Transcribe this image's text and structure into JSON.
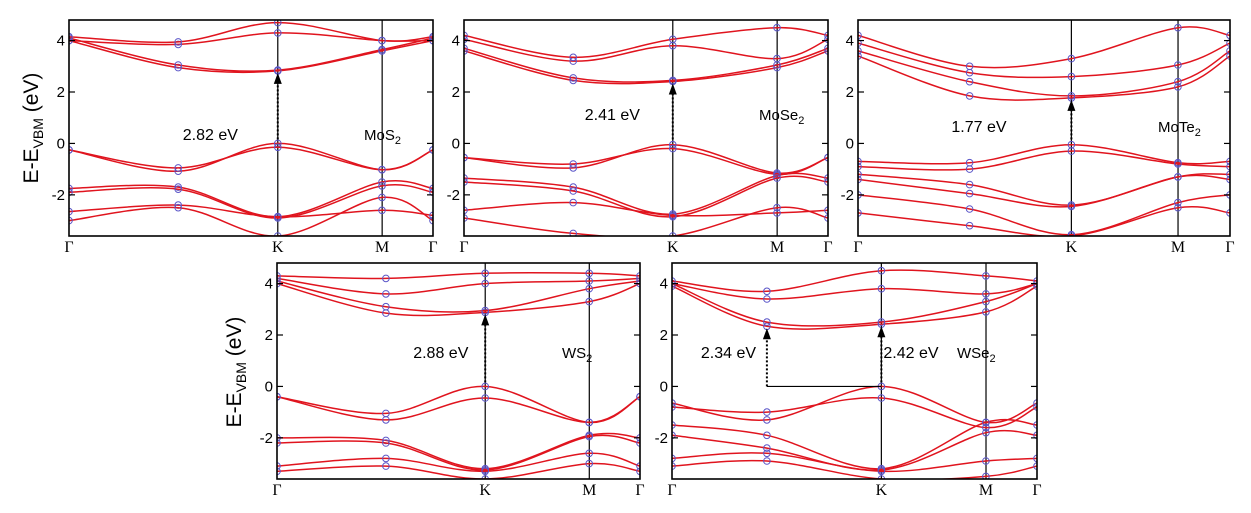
{
  "figure": {
    "ylabel_main": "E-E",
    "ylabel_sub": "VBM",
    "ylabel_unit": " (eV)",
    "colors": {
      "band": "#e0141e",
      "marker": "#5a55c8",
      "axis": "#000000"
    }
  },
  "chart_data": [
    {
      "type": "line",
      "material_main": "MoS",
      "material_sub": "2",
      "gap_label": "2.82 eV",
      "kpoints": [
        "Γ",
        "K",
        "M",
        "Γ"
      ],
      "kpoint_positions": [
        0,
        0.5736,
        0.8603,
        1.0
      ],
      "ylim": [
        -3.6,
        4.8
      ],
      "yticks": [
        4,
        2,
        0,
        -2
      ],
      "vbm": {
        "k": 0.5736,
        "E": 0.0
      },
      "cbm": {
        "k": 0.5736,
        "E": 2.82
      },
      "valence_bands": [
        [
          [
            0,
            -0.25
          ],
          [
            0.3,
            -1.08
          ],
          [
            0.5736,
            -0.0
          ],
          [
            0.86,
            -1.02
          ],
          [
            1.0,
            -0.25
          ]
        ],
        [
          [
            0,
            -0.25
          ],
          [
            0.3,
            -0.95
          ],
          [
            0.5736,
            -0.15
          ],
          [
            0.86,
            -1.02
          ],
          [
            1.0,
            -0.25
          ]
        ],
        [
          [
            0,
            -1.75
          ],
          [
            0.3,
            -1.7
          ],
          [
            0.5736,
            -2.85
          ],
          [
            0.86,
            -1.5
          ],
          [
            1.0,
            -1.75
          ]
        ],
        [
          [
            0,
            -1.9
          ],
          [
            0.3,
            -1.78
          ],
          [
            0.5736,
            -2.9
          ],
          [
            0.86,
            -1.65
          ],
          [
            1.0,
            -1.9
          ]
        ],
        [
          [
            0,
            -2.65
          ],
          [
            0.3,
            -2.4
          ],
          [
            0.5736,
            -2.85
          ],
          [
            0.86,
            -2.6
          ],
          [
            1.0,
            -2.8
          ]
        ],
        [
          [
            0,
            -3.0
          ],
          [
            0.3,
            -2.5
          ],
          [
            0.5736,
            -3.6
          ],
          [
            0.86,
            -2.1
          ],
          [
            1.0,
            -3.0
          ]
        ]
      ],
      "conduction_bands": [
        [
          [
            0,
            4.0
          ],
          [
            0.3,
            2.95
          ],
          [
            0.5736,
            2.82
          ],
          [
            0.86,
            3.6
          ],
          [
            1.0,
            4.0
          ]
        ],
        [
          [
            0,
            4.1
          ],
          [
            0.3,
            3.05
          ],
          [
            0.5736,
            2.85
          ],
          [
            0.86,
            3.65
          ],
          [
            1.0,
            4.1
          ]
        ],
        [
          [
            0,
            4.0
          ],
          [
            0.3,
            3.85
          ],
          [
            0.5736,
            4.3
          ],
          [
            0.86,
            4.0
          ],
          [
            1.0,
            4.0
          ]
        ],
        [
          [
            0,
            4.15
          ],
          [
            0.3,
            3.95
          ],
          [
            0.5736,
            4.7
          ],
          [
            0.86,
            4.0
          ],
          [
            1.0,
            4.15
          ]
        ]
      ]
    },
    {
      "type": "line",
      "material_main": "MoSe",
      "material_sub": "2",
      "gap_label": "2.41 eV",
      "kpoints": [
        "Γ",
        "K",
        "M",
        "Γ"
      ],
      "kpoint_positions": [
        0,
        0.5736,
        0.8603,
        1.0
      ],
      "ylim": [
        -3.6,
        4.8
      ],
      "yticks": [
        4,
        2,
        0,
        -2
      ],
      "vbm": {
        "k": 0.5736,
        "E": 0.0
      },
      "cbm": {
        "k": 0.5736,
        "E": 2.41
      },
      "valence_bands": [
        [
          [
            0,
            -0.55
          ],
          [
            0.3,
            -0.95
          ],
          [
            0.5736,
            -0.05
          ],
          [
            0.86,
            -1.15
          ],
          [
            1.0,
            -0.55
          ]
        ],
        [
          [
            0,
            -0.55
          ],
          [
            0.3,
            -0.8
          ],
          [
            0.5736,
            -0.2
          ],
          [
            0.86,
            -1.2
          ],
          [
            1.0,
            -0.55
          ]
        ],
        [
          [
            0,
            -1.35
          ],
          [
            0.3,
            -1.7
          ],
          [
            0.5736,
            -2.75
          ],
          [
            0.86,
            -1.25
          ],
          [
            1.0,
            -1.35
          ]
        ],
        [
          [
            0,
            -1.5
          ],
          [
            0.3,
            -1.85
          ],
          [
            0.5736,
            -2.85
          ],
          [
            0.86,
            -1.35
          ],
          [
            1.0,
            -1.5
          ]
        ],
        [
          [
            0,
            -2.6
          ],
          [
            0.3,
            -2.3
          ],
          [
            0.5736,
            -2.8
          ],
          [
            0.86,
            -2.7
          ],
          [
            1.0,
            -2.6
          ]
        ],
        [
          [
            0,
            -2.9
          ],
          [
            0.3,
            -3.5
          ],
          [
            0.5736,
            -3.6
          ],
          [
            0.86,
            -2.5
          ],
          [
            1.0,
            -2.9
          ]
        ]
      ],
      "conduction_bands": [
        [
          [
            0,
            3.6
          ],
          [
            0.3,
            2.45
          ],
          [
            0.5736,
            2.41
          ],
          [
            0.86,
            2.95
          ],
          [
            1.0,
            3.6
          ]
        ],
        [
          [
            0,
            3.7
          ],
          [
            0.3,
            2.55
          ],
          [
            0.5736,
            2.45
          ],
          [
            0.86,
            3.05
          ],
          [
            1.0,
            3.7
          ]
        ],
        [
          [
            0,
            4.05
          ],
          [
            0.3,
            3.2
          ],
          [
            0.5736,
            3.8
          ],
          [
            0.86,
            3.3
          ],
          [
            1.0,
            4.05
          ]
        ],
        [
          [
            0,
            4.2
          ],
          [
            0.3,
            3.35
          ],
          [
            0.5736,
            4.05
          ],
          [
            0.86,
            4.5
          ],
          [
            1.0,
            4.2
          ]
        ]
      ]
    },
    {
      "type": "line",
      "material_main": "MoTe",
      "material_sub": "2",
      "gap_label": "1.77 eV",
      "kpoints": [
        "Γ",
        "K",
        "M",
        "Γ"
      ],
      "kpoint_positions": [
        0,
        0.5736,
        0.8603,
        1.0
      ],
      "ylim": [
        -3.6,
        4.8
      ],
      "yticks": [
        4,
        2,
        0,
        -2
      ],
      "vbm": {
        "k": 0.5736,
        "E": 0.0
      },
      "cbm": {
        "k": 0.5736,
        "E": 1.77
      },
      "valence_bands": [
        [
          [
            0,
            -0.7
          ],
          [
            0.3,
            -0.75
          ],
          [
            0.5736,
            -0.05
          ],
          [
            0.86,
            -0.75
          ],
          [
            1.0,
            -0.7
          ]
        ],
        [
          [
            0,
            -0.9
          ],
          [
            0.3,
            -1.0
          ],
          [
            0.5736,
            -0.3
          ],
          [
            0.86,
            -0.8
          ],
          [
            1.0,
            -0.9
          ]
        ],
        [
          [
            0,
            -1.2
          ],
          [
            0.3,
            -1.6
          ],
          [
            0.5736,
            -2.4
          ],
          [
            0.86,
            -1.3
          ],
          [
            1.0,
            -1.2
          ]
        ],
        [
          [
            0,
            -1.4
          ],
          [
            0.3,
            -1.95
          ],
          [
            0.5736,
            -2.45
          ],
          [
            0.86,
            -1.3
          ],
          [
            1.0,
            -1.4
          ]
        ],
        [
          [
            0,
            -2.0
          ],
          [
            0.3,
            -2.55
          ],
          [
            0.5736,
            -3.55
          ],
          [
            0.86,
            -2.3
          ],
          [
            1.0,
            -2.0
          ]
        ],
        [
          [
            0,
            -2.7
          ],
          [
            0.3,
            -3.2
          ],
          [
            0.5736,
            -3.6
          ],
          [
            0.86,
            -2.5
          ],
          [
            1.0,
            -2.7
          ]
        ]
      ],
      "conduction_bands": [
        [
          [
            0,
            3.4
          ],
          [
            0.3,
            1.85
          ],
          [
            0.5736,
            1.77
          ],
          [
            0.86,
            2.2
          ],
          [
            1.0,
            3.4
          ]
        ],
        [
          [
            0,
            3.6
          ],
          [
            0.3,
            2.4
          ],
          [
            0.5736,
            1.85
          ],
          [
            0.86,
            2.4
          ],
          [
            1.0,
            3.6
          ]
        ],
        [
          [
            0,
            3.9
          ],
          [
            0.3,
            2.75
          ],
          [
            0.5736,
            2.6
          ],
          [
            0.86,
            3.05
          ],
          [
            1.0,
            3.9
          ]
        ],
        [
          [
            0,
            4.2
          ],
          [
            0.3,
            3.0
          ],
          [
            0.5736,
            3.3
          ],
          [
            0.86,
            4.5
          ],
          [
            1.0,
            4.2
          ]
        ]
      ]
    },
    {
      "type": "line",
      "material_main": "WS",
      "material_sub": "2",
      "gap_label": "2.88 eV",
      "kpoints": [
        "Γ",
        "K",
        "M",
        "Γ"
      ],
      "kpoint_positions": [
        0,
        0.5736,
        0.8603,
        1.0
      ],
      "ylim": [
        -3.6,
        4.8
      ],
      "yticks": [
        4,
        2,
        0,
        -2
      ],
      "vbm": {
        "k": 0.5736,
        "E": 0.0
      },
      "cbm": {
        "k": 0.5736,
        "E": 2.88
      },
      "valence_bands": [
        [
          [
            0,
            -0.4
          ],
          [
            0.3,
            -1.05
          ],
          [
            0.5736,
            0.0
          ],
          [
            0.86,
            -1.4
          ],
          [
            1.0,
            -0.4
          ]
        ],
        [
          [
            0,
            -0.4
          ],
          [
            0.3,
            -1.3
          ],
          [
            0.5736,
            -0.45
          ],
          [
            0.86,
            -1.4
          ],
          [
            1.0,
            -0.4
          ]
        ],
        [
          [
            0,
            -2.0
          ],
          [
            0.3,
            -2.1
          ],
          [
            0.5736,
            -3.2
          ],
          [
            0.86,
            -1.9
          ],
          [
            1.0,
            -2.0
          ]
        ],
        [
          [
            0,
            -2.2
          ],
          [
            0.3,
            -2.2
          ],
          [
            0.5736,
            -3.25
          ],
          [
            0.86,
            -1.95
          ],
          [
            1.0,
            -2.2
          ]
        ],
        [
          [
            0,
            -3.1
          ],
          [
            0.3,
            -2.8
          ],
          [
            0.5736,
            -3.3
          ],
          [
            0.86,
            -2.6
          ],
          [
            1.0,
            -3.1
          ]
        ],
        [
          [
            0,
            -3.3
          ],
          [
            0.3,
            -3.1
          ],
          [
            0.5736,
            -3.6
          ],
          [
            0.86,
            -3.0
          ],
          [
            1.0,
            -3.3
          ]
        ]
      ],
      "conduction_bands": [
        [
          [
            0,
            4.0
          ],
          [
            0.3,
            2.85
          ],
          [
            0.5736,
            2.88
          ],
          [
            0.86,
            3.3
          ],
          [
            1.0,
            4.0
          ]
        ],
        [
          [
            0,
            4.1
          ],
          [
            0.3,
            3.1
          ],
          [
            0.5736,
            2.95
          ],
          [
            0.86,
            3.8
          ],
          [
            1.0,
            4.1
          ]
        ],
        [
          [
            0,
            4.2
          ],
          [
            0.3,
            3.6
          ],
          [
            0.5736,
            4.0
          ],
          [
            0.86,
            4.1
          ],
          [
            1.0,
            4.2
          ]
        ],
        [
          [
            0,
            4.3
          ],
          [
            0.3,
            4.2
          ],
          [
            0.5736,
            4.4
          ],
          [
            0.86,
            4.4
          ],
          [
            1.0,
            4.3
          ]
        ]
      ]
    },
    {
      "type": "line",
      "material_main": "WSe",
      "material_sub": "2",
      "gap_label": "2.42 eV",
      "gap_label_2": "2.34 eV",
      "kpoints": [
        "Γ",
        "K",
        "M",
        "Γ"
      ],
      "kpoint_positions": [
        0,
        0.5736,
        0.8603,
        1.0
      ],
      "ylim": [
        -3.6,
        4.8
      ],
      "yticks": [
        4,
        2,
        0,
        -2
      ],
      "vbm": {
        "k": 0.5736,
        "E": 0.0
      },
      "cbm": {
        "k": 0.5736,
        "E": 2.42
      },
      "indirect_cbm": {
        "k": 0.26,
        "E": 2.34
      },
      "valence_bands": [
        [
          [
            0,
            -0.65
          ],
          [
            0.26,
            -1.3
          ],
          [
            0.5736,
            0.0
          ],
          [
            0.86,
            -1.4
          ],
          [
            1.0,
            -0.65
          ]
        ],
        [
          [
            0,
            -0.8
          ],
          [
            0.26,
            -1.0
          ],
          [
            0.5736,
            -0.45
          ],
          [
            0.86,
            -1.6
          ],
          [
            1.0,
            -0.8
          ]
        ],
        [
          [
            0,
            -1.5
          ],
          [
            0.26,
            -1.9
          ],
          [
            0.5736,
            -3.2
          ],
          [
            0.86,
            -1.4
          ],
          [
            1.0,
            -1.5
          ]
        ],
        [
          [
            0,
            -1.9
          ],
          [
            0.26,
            -2.4
          ],
          [
            0.5736,
            -3.25
          ],
          [
            0.86,
            -1.8
          ],
          [
            1.0,
            -1.9
          ]
        ],
        [
          [
            0,
            -2.8
          ],
          [
            0.26,
            -2.6
          ],
          [
            0.5736,
            -3.3
          ],
          [
            0.86,
            -2.9
          ],
          [
            1.0,
            -2.8
          ]
        ],
        [
          [
            0,
            -3.1
          ],
          [
            0.26,
            -2.9
          ],
          [
            0.5736,
            -3.6
          ],
          [
            0.86,
            -3.5
          ],
          [
            1.0,
            -3.1
          ]
        ]
      ],
      "conduction_bands": [
        [
          [
            0,
            3.9
          ],
          [
            0.26,
            2.34
          ],
          [
            0.5736,
            2.42
          ],
          [
            0.86,
            2.9
          ],
          [
            1.0,
            3.9
          ]
        ],
        [
          [
            0,
            4.0
          ],
          [
            0.26,
            2.5
          ],
          [
            0.5736,
            2.5
          ],
          [
            0.86,
            3.3
          ],
          [
            1.0,
            4.0
          ]
        ],
        [
          [
            0,
            4.0
          ],
          [
            0.26,
            3.4
          ],
          [
            0.5736,
            3.8
          ],
          [
            0.86,
            3.6
          ],
          [
            1.0,
            4.0
          ]
        ],
        [
          [
            0,
            4.1
          ],
          [
            0.26,
            3.7
          ],
          [
            0.5736,
            4.5
          ],
          [
            0.86,
            4.3
          ],
          [
            1.0,
            4.1
          ]
        ]
      ]
    }
  ]
}
